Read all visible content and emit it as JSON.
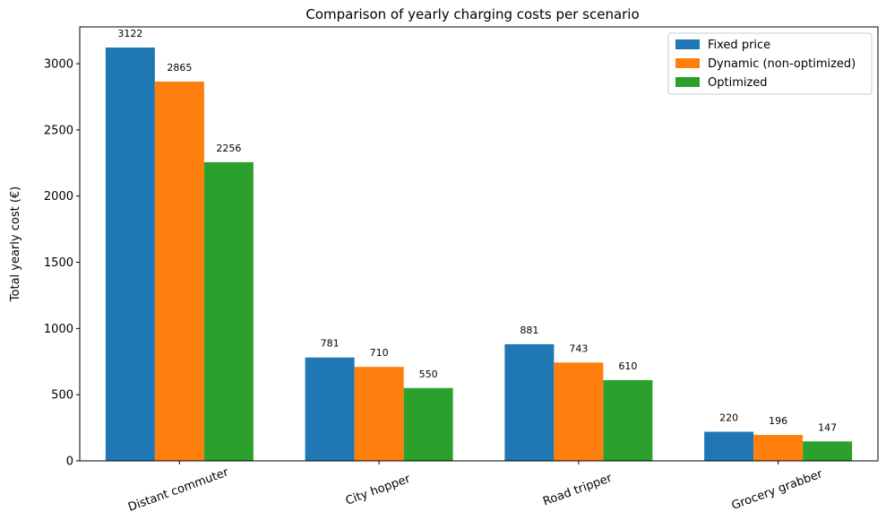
{
  "chart_data": {
    "type": "bar",
    "title": "Comparison of yearly charging costs per scenario",
    "xlabel": "",
    "ylabel": "Total yearly cost (€)",
    "categories": [
      "Distant commuter",
      "City hopper",
      "Road tripper",
      "Grocery grabber"
    ],
    "series": [
      {
        "name": "Fixed price",
        "color": "#1f77b4",
        "values": [
          3122,
          781,
          881,
          220
        ]
      },
      {
        "name": "Dynamic (non-optimized)",
        "color": "#ff7f0e",
        "values": [
          2865,
          710,
          743,
          196
        ]
      },
      {
        "name": "Optimized",
        "color": "#2ca02c",
        "values": [
          2256,
          550,
          610,
          147
        ]
      }
    ],
    "ylim": [
      0,
      3278
    ],
    "yticks": [
      0,
      500,
      1000,
      1500,
      2000,
      2500,
      3000
    ],
    "legend_position": "top-right",
    "grid": false
  }
}
